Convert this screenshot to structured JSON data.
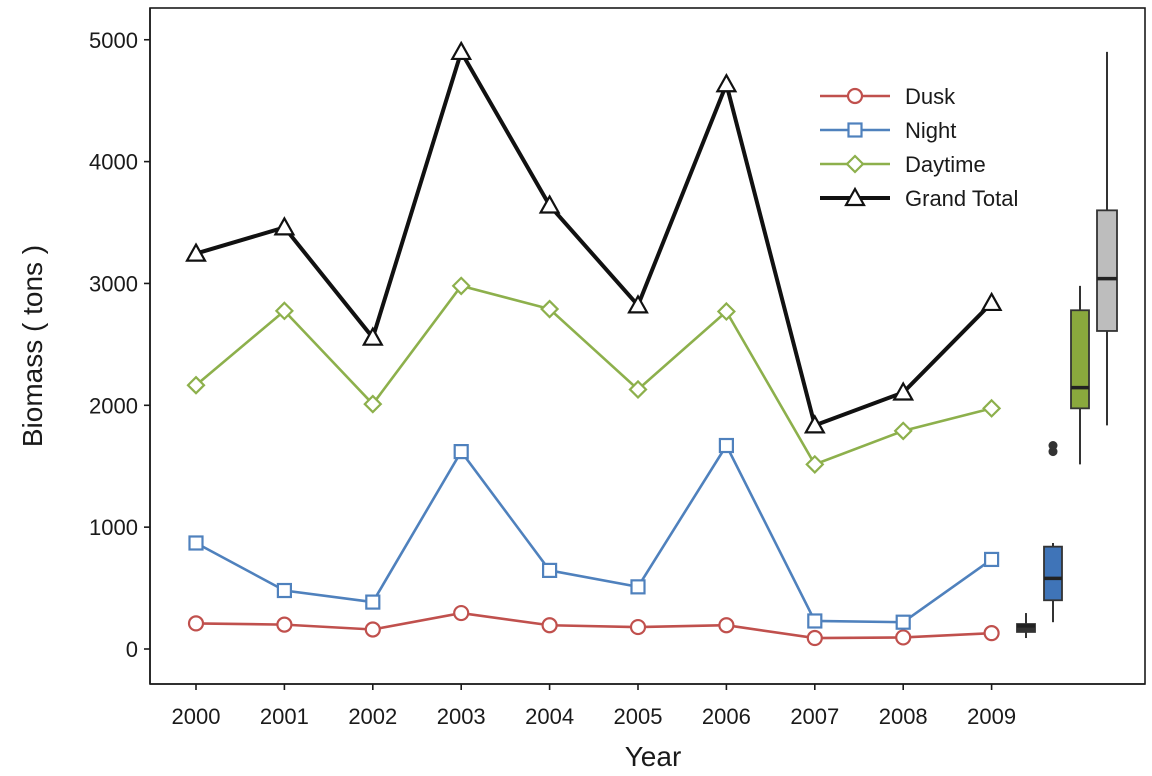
{
  "chart_data": {
    "type": "line",
    "title": "",
    "xlabel": "Year",
    "ylabel": "Biomass ( tons )",
    "x": [
      "2000",
      "2001",
      "2002",
      "2003",
      "2004",
      "2005",
      "2006",
      "2007",
      "2008",
      "2009"
    ],
    "ylim": [
      -300,
      5300
    ],
    "yticks": [
      0,
      1000,
      2000,
      3000,
      4000,
      5000
    ],
    "grid": false,
    "legend_position": "top-right",
    "series": [
      {
        "name": "Dusk",
        "marker": "circle",
        "color": "#c0504d",
        "values": [
          210,
          200,
          160,
          295,
          195,
          180,
          195,
          90,
          95,
          130
        ]
      },
      {
        "name": "Night",
        "marker": "square",
        "color": "#4f81bd",
        "values": [
          870,
          480,
          385,
          1620,
          645,
          510,
          1670,
          230,
          220,
          735
        ]
      },
      {
        "name": "Daytime",
        "marker": "diamond",
        "color": "#8db04c",
        "values": [
          2165,
          2775,
          2010,
          2980,
          2790,
          2130,
          2770,
          1515,
          1790,
          1975
        ]
      },
      {
        "name": "Grand Total",
        "marker": "triangle",
        "color": "#111111",
        "values": [
          3245,
          3460,
          2555,
          4900,
          3640,
          2820,
          4635,
          1835,
          2105,
          2840
        ]
      }
    ],
    "boxplots": [
      {
        "series": "Dusk",
        "fill": "#333333",
        "min": 90,
        "q1": 140,
        "median": 190,
        "q3": 205,
        "max": 295,
        "outliers": []
      },
      {
        "series": "Night",
        "fill": "#3f74b8",
        "min": 220,
        "q1": 400,
        "median": 580,
        "q3": 840,
        "max": 870,
        "outliers": [
          1620,
          1670
        ]
      },
      {
        "series": "Daytime",
        "fill": "#8aa83d",
        "min": 1515,
        "q1": 1975,
        "median": 2145,
        "q3": 2780,
        "max": 2980,
        "outliers": []
      },
      {
        "series": "Grand Total",
        "fill": "#bdbdbd",
        "min": 1835,
        "q1": 2610,
        "median": 3040,
        "q3": 3600,
        "max": 4900,
        "outliers": []
      }
    ]
  }
}
